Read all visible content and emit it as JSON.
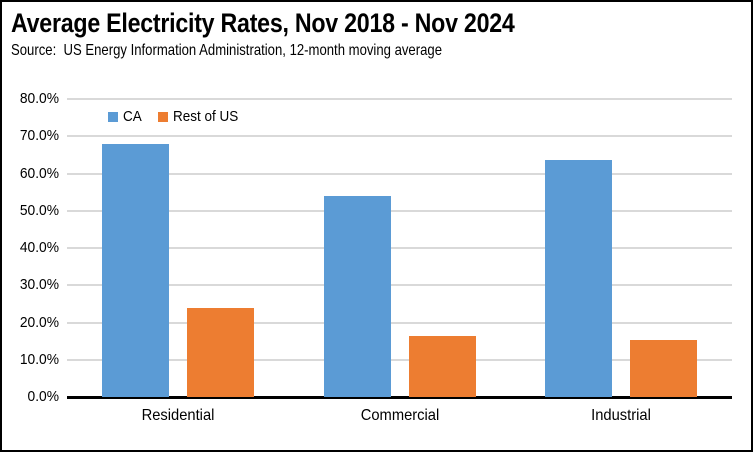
{
  "header": {
    "title": "Average Electricity Rates, Nov 2018 - Nov 2024",
    "subtitle": "Source:  US Energy Information Administration, 12-month moving average"
  },
  "legend": {
    "items": [
      {
        "label": "CA",
        "color": "#5B9BD5"
      },
      {
        "label": "Rest of US",
        "color": "#ED7D31"
      }
    ]
  },
  "chart_data": {
    "type": "bar",
    "title": "Average Electricity Rates, Nov 2018 - Nov 2024",
    "subtitle": "Source:  US Energy Information Administration, 12-month moving average",
    "categories": [
      "Residential",
      "Commercial",
      "Industrial"
    ],
    "series": [
      {
        "name": "CA",
        "color": "#5B9BD5",
        "values": [
          68.0,
          54.0,
          63.5
        ]
      },
      {
        "name": "Rest of US",
        "color": "#ED7D31",
        "values": [
          24.0,
          16.3,
          15.3
        ]
      }
    ],
    "unit": "percent",
    "xlabel": "",
    "ylabel": "",
    "ylim": [
      0,
      80
    ],
    "ytick_step": 10,
    "ytick_labels": [
      "0.0%",
      "10.0%",
      "20.0%",
      "30.0%",
      "40.0%",
      "50.0%",
      "60.0%",
      "70.0%",
      "80.0%"
    ],
    "grid": true,
    "gridline_color": "#D9D9D9",
    "axis_color": "#000000",
    "legend_position": "top-left-inside-plot"
  }
}
